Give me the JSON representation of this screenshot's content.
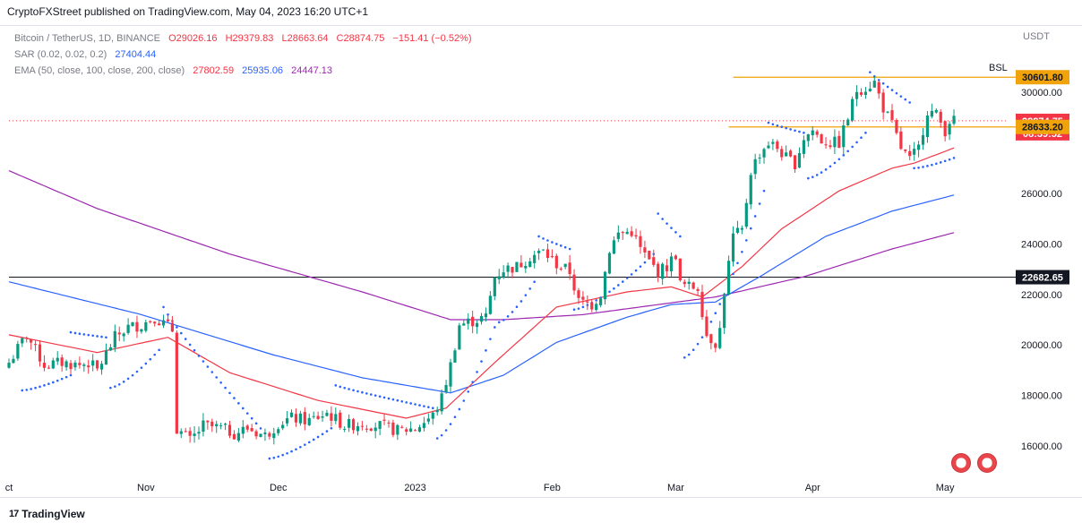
{
  "header": {
    "published_text": "CryptoFXStreet published on TradingView.com, May 04, 2023 16:20 UTC+1"
  },
  "legend": {
    "symbol_line": "Bitcoin / TetherUS, 1D, BINANCE",
    "ohlc": {
      "open": "O29026.16",
      "high": "H29379.83",
      "low": "L28663.64",
      "close": "C28874.75",
      "change": "−151.41 (−0.52%)"
    },
    "sar": {
      "label": "SAR (0.02, 0.02, 0.2)",
      "value": "27404.44"
    },
    "ema": {
      "label": "EMA (50, close, 100, close, 200, close)",
      "v50": "27802.59",
      "v100": "25935.06",
      "v200": "24447.13"
    }
  },
  "footer": {
    "brand": "TradingView",
    "logo": "17"
  },
  "colors": {
    "up": "#089981",
    "down": "#f23645",
    "ema50": "#f23645",
    "ema100": "#2962ff",
    "ema200": "#9c27b0",
    "sar": "#2962ff",
    "level_gold": "#f0a30a",
    "level_black": "#131722"
  },
  "chart_data": {
    "type": "candlestick",
    "currency": "USDT",
    "y_ticks": [
      "16000.00",
      "18000.00",
      "20000.00",
      "22000.00",
      "24000.00",
      "26000.00",
      "30000.00"
    ],
    "ylim": [
      15000,
      32000
    ],
    "x_ticks": [
      {
        "label": "ct",
        "day": 0
      },
      {
        "label": "Nov",
        "day": 31
      },
      {
        "label": "Dec",
        "day": 61
      },
      {
        "label": "2023",
        "day": 92
      },
      {
        "label": "Feb",
        "day": 123
      },
      {
        "label": "Mar",
        "day": 151
      },
      {
        "label": "Apr",
        "day": 182
      },
      {
        "label": "May",
        "day": 212
      }
    ],
    "price_labels": [
      {
        "text": "30601.80",
        "value": 30601.8,
        "kind": "level"
      },
      {
        "text": "28874.75",
        "value": 28874.75,
        "kind": "last"
      },
      {
        "text": "08:39:52",
        "value": 28380,
        "kind": "timer"
      },
      {
        "text": "28633.20",
        "value": 28633.2,
        "kind": "level"
      },
      {
        "text": "22682.65",
        "value": 22682.65,
        "kind": "black"
      }
    ],
    "levels": [
      {
        "name": "BSL",
        "value": 30601.8,
        "from_day": 164,
        "to_day": 218
      },
      {
        "name": "",
        "value": 28633.2,
        "from_day": 163,
        "to_day": 218
      },
      {
        "name": "",
        "value": 22682.65,
        "from_day": 0,
        "to_day": 218
      },
      {
        "name": "last",
        "value": 28874.75,
        "from_day": 0,
        "to_day": 218
      }
    ],
    "annotation": "BSL",
    "anchors": [
      [
        0,
        19300
      ],
      [
        4,
        20400
      ],
      [
        8,
        19200
      ],
      [
        12,
        19300
      ],
      [
        16,
        19200
      ],
      [
        18,
        19300
      ],
      [
        20,
        19000
      ],
      [
        24,
        20300
      ],
      [
        27,
        20700
      ],
      [
        30,
        20800
      ],
      [
        33,
        21100
      ],
      [
        37,
        20600
      ],
      [
        38,
        16700
      ],
      [
        41,
        16200
      ],
      [
        44,
        16800
      ],
      [
        48,
        16700
      ],
      [
        51,
        16500
      ],
      [
        54,
        16700
      ],
      [
        58,
        16400
      ],
      [
        61,
        16900
      ],
      [
        64,
        17100
      ],
      [
        68,
        17000
      ],
      [
        72,
        17300
      ],
      [
        76,
        16800
      ],
      [
        80,
        16900
      ],
      [
        84,
        16800
      ],
      [
        88,
        16600
      ],
      [
        92,
        16700
      ],
      [
        96,
        17200
      ],
      [
        98,
        17900
      ],
      [
        100,
        19200
      ],
      [
        102,
        20800
      ],
      [
        104,
        20900
      ],
      [
        106,
        21000
      ],
      [
        108,
        21100
      ],
      [
        110,
        22700
      ],
      [
        112,
        23000
      ],
      [
        115,
        23100
      ],
      [
        118,
        23500
      ],
      [
        121,
        23700
      ],
      [
        124,
        23200
      ],
      [
        127,
        22900
      ],
      [
        129,
        21700
      ],
      [
        132,
        21600
      ],
      [
        134,
        22000
      ],
      [
        136,
        23800
      ],
      [
        138,
        24400
      ],
      [
        141,
        24500
      ],
      [
        143,
        23800
      ],
      [
        145,
        23300
      ],
      [
        147,
        22900
      ],
      [
        149,
        23100
      ],
      [
        151,
        23600
      ],
      [
        152,
        22400
      ],
      [
        154,
        22300
      ],
      [
        156,
        22300
      ],
      [
        158,
        20400
      ],
      [
        160,
        20100
      ],
      [
        161,
        20600
      ],
      [
        162,
        22100
      ],
      [
        164,
        24300
      ],
      [
        166,
        24500
      ],
      [
        168,
        26900
      ],
      [
        170,
        27600
      ],
      [
        172,
        28000
      ],
      [
        174,
        27800
      ],
      [
        176,
        27400
      ],
      [
        178,
        27200
      ],
      [
        180,
        28200
      ],
      [
        182,
        28500
      ],
      [
        184,
        28100
      ],
      [
        186,
        28000
      ],
      [
        188,
        28000
      ],
      [
        190,
        29000
      ],
      [
        192,
        30100
      ],
      [
        194,
        30200
      ],
      [
        196,
        30400
      ],
      [
        198,
        29400
      ],
      [
        200,
        28700
      ],
      [
        202,
        27800
      ],
      [
        204,
        27300
      ],
      [
        206,
        27800
      ],
      [
        208,
        29300
      ],
      [
        210,
        29100
      ],
      [
        212,
        28500
      ],
      [
        213,
        28900
      ],
      [
        214,
        28870
      ]
    ],
    "ema50_anchors": [
      [
        0,
        20400
      ],
      [
        20,
        19700
      ],
      [
        36,
        20300
      ],
      [
        50,
        18900
      ],
      [
        70,
        17800
      ],
      [
        90,
        17100
      ],
      [
        99,
        17500
      ],
      [
        110,
        19300
      ],
      [
        124,
        21500
      ],
      [
        140,
        22100
      ],
      [
        150,
        22300
      ],
      [
        157,
        21900
      ],
      [
        166,
        23100
      ],
      [
        175,
        24600
      ],
      [
        188,
        26100
      ],
      [
        200,
        27000
      ],
      [
        205,
        27200
      ],
      [
        214,
        27800
      ]
    ],
    "ema100_anchors": [
      [
        0,
        22500
      ],
      [
        30,
        21200
      ],
      [
        60,
        19600
      ],
      [
        80,
        18700
      ],
      [
        100,
        18100
      ],
      [
        112,
        18800
      ],
      [
        124,
        20100
      ],
      [
        140,
        21100
      ],
      [
        150,
        21600
      ],
      [
        160,
        21700
      ],
      [
        170,
        22700
      ],
      [
        185,
        24300
      ],
      [
        200,
        25300
      ],
      [
        214,
        25935
      ]
    ],
    "ema200_anchors": [
      [
        0,
        26900
      ],
      [
        20,
        25400
      ],
      [
        50,
        23600
      ],
      [
        80,
        22100
      ],
      [
        100,
        21000
      ],
      [
        112,
        21000
      ],
      [
        130,
        21200
      ],
      [
        160,
        21900
      ],
      [
        180,
        22700
      ],
      [
        200,
        23800
      ],
      [
        214,
        24447
      ]
    ],
    "sar_segments": [
      {
        "from": 3,
        "to": 14,
        "start": 18200,
        "end": 18800,
        "below": true
      },
      {
        "from": 14,
        "to": 22,
        "start": 20500,
        "end": 20300,
        "below": false
      },
      {
        "from": 23,
        "to": 34,
        "start": 18300,
        "end": 19800,
        "below": true
      },
      {
        "from": 35,
        "to": 58,
        "start": 21500,
        "end": 16500,
        "below": false
      },
      {
        "from": 59,
        "to": 73,
        "start": 15500,
        "end": 16700,
        "below": true
      },
      {
        "from": 74,
        "to": 96,
        "start": 18400,
        "end": 17500,
        "below": false
      },
      {
        "from": 97,
        "to": 110,
        "start": 16300,
        "end": 20700,
        "below": true
      },
      {
        "from": 111,
        "to": 119,
        "start": 20900,
        "end": 22500,
        "below": true
      },
      {
        "from": 120,
        "to": 127,
        "start": 24300,
        "end": 23800,
        "below": false
      },
      {
        "from": 128,
        "to": 146,
        "start": 21400,
        "end": 23600,
        "below": true
      },
      {
        "from": 147,
        "to": 152,
        "start": 25200,
        "end": 24300,
        "below": false
      },
      {
        "from": 153,
        "to": 171,
        "start": 19500,
        "end": 26100,
        "below": true
      },
      {
        "from": 172,
        "to": 180,
        "start": 28800,
        "end": 28400,
        "below": false
      },
      {
        "from": 181,
        "to": 194,
        "start": 26600,
        "end": 28400,
        "below": true
      },
      {
        "from": 195,
        "to": 204,
        "start": 30800,
        "end": 29600,
        "below": false
      },
      {
        "from": 205,
        "to": 214,
        "start": 27000,
        "end": 27404,
        "below": true
      }
    ]
  }
}
